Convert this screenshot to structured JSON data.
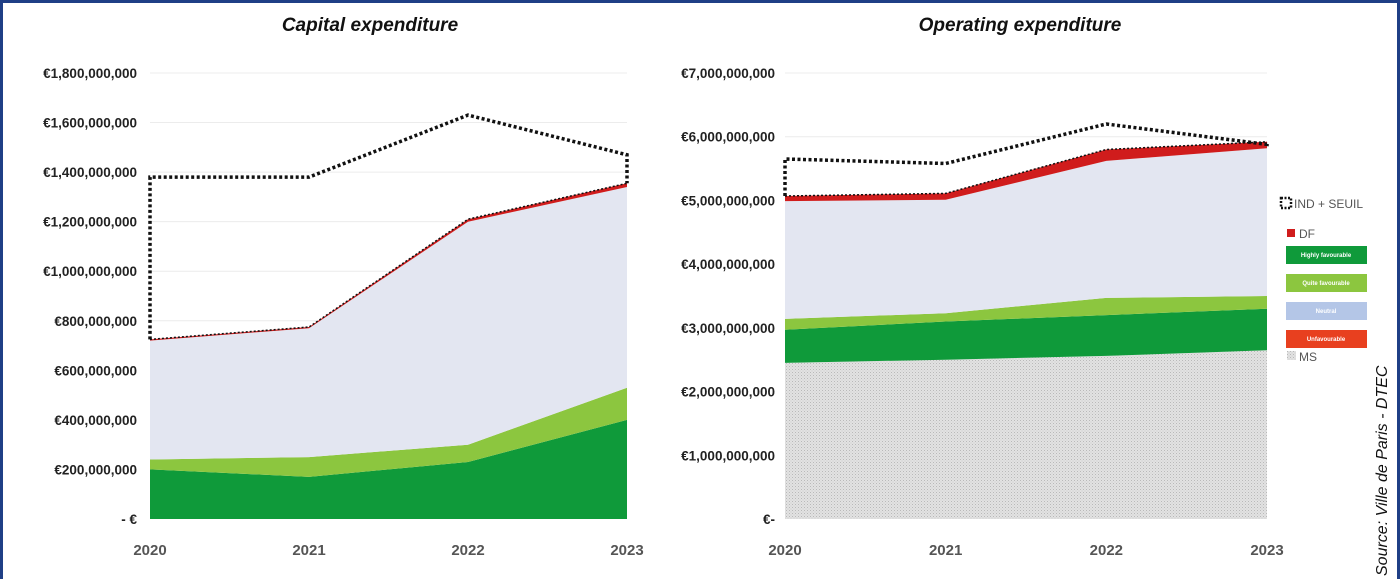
{
  "source_label": "Source: Ville de Paris - DTEC",
  "colors": {
    "dotted_line": "#111111",
    "df": "#d01c1c",
    "highly": "#0f9a3a",
    "quite": "#8cc63f",
    "neutral": "#e3e6f1",
    "unfavourable": "#d23b2a",
    "ms": "#d8d8d8"
  },
  "legend": {
    "ind_seuil": "IND + SEUIL",
    "df": "DF",
    "highly": "Highly favourable",
    "quite": "Quite favourable",
    "neutral": "Neutral",
    "unfavourable": "Unfavourable",
    "ms": "MS"
  },
  "chart_data": [
    {
      "type": "area",
      "title": "Capital expenditure",
      "x": [
        "2020",
        "2021",
        "2022",
        "2023"
      ],
      "ylim": [
        0,
        1800000000
      ],
      "yticks": [
        0,
        200000000,
        400000000,
        600000000,
        800000000,
        1000000000,
        1200000000,
        1400000000,
        1600000000,
        1800000000
      ],
      "ytick_labels": [
        "- €",
        "€200,000,000",
        "€400,000,000",
        "€600,000,000",
        "€800,000,000",
        "€1,000,000,000",
        "€1,200,000,000",
        "€1,400,000,000",
        "€1,600,000,000",
        "€1,800,000,000"
      ],
      "grid": true,
      "stack_order": [
        "highly",
        "quite",
        "neutral",
        "df"
      ],
      "series": [
        {
          "key": "highly",
          "name": "Highly favourable",
          "values": [
            200000000,
            170000000,
            230000000,
            400000000
          ]
        },
        {
          "key": "quite",
          "name": "Quite favourable",
          "values": [
            40000000,
            80000000,
            70000000,
            130000000
          ]
        },
        {
          "key": "neutral",
          "name": "Neutral",
          "values": [
            480000000,
            520000000,
            900000000,
            810000000
          ]
        },
        {
          "key": "df",
          "name": "DF",
          "values": [
            5000000,
            5000000,
            10000000,
            15000000
          ]
        }
      ],
      "ind_seuil": {
        "name": "IND + SEUIL",
        "values": [
          1380000000,
          1380000000,
          1630000000,
          1470000000
        ]
      }
    },
    {
      "type": "area",
      "title": "Operating expenditure",
      "x": [
        "2020",
        "2021",
        "2022",
        "2023"
      ],
      "ylim": [
        0,
        7000000000
      ],
      "yticks": [
        0,
        1000000000,
        2000000000,
        3000000000,
        4000000000,
        5000000000,
        6000000000,
        7000000000
      ],
      "ytick_labels": [
        "€-",
        "€1,000,000,000",
        "€2,000,000,000",
        "€3,000,000,000",
        "€4,000,000,000",
        "€5,000,000,000",
        "€6,000,000,000",
        "€7,000,000,000"
      ],
      "grid": true,
      "stack_order": [
        "ms",
        "highly",
        "quite",
        "neutral",
        "df"
      ],
      "series": [
        {
          "key": "ms",
          "name": "MS",
          "values": [
            2450000000,
            2500000000,
            2560000000,
            2650000000
          ]
        },
        {
          "key": "highly",
          "name": "Highly favourable",
          "values": [
            520000000,
            600000000,
            640000000,
            650000000
          ]
        },
        {
          "key": "quite",
          "name": "Quite favourable",
          "values": [
            170000000,
            130000000,
            270000000,
            200000000
          ]
        },
        {
          "key": "neutral",
          "name": "Neutral",
          "values": [
            1850000000,
            1780000000,
            2150000000,
            2320000000
          ]
        },
        {
          "key": "df",
          "name": "DF",
          "values": [
            80000000,
            100000000,
            180000000,
            100000000
          ]
        }
      ],
      "ind_seuil": {
        "name": "IND + SEUIL",
        "values": [
          5650000000,
          5580000000,
          6200000000,
          5880000000
        ]
      }
    }
  ]
}
